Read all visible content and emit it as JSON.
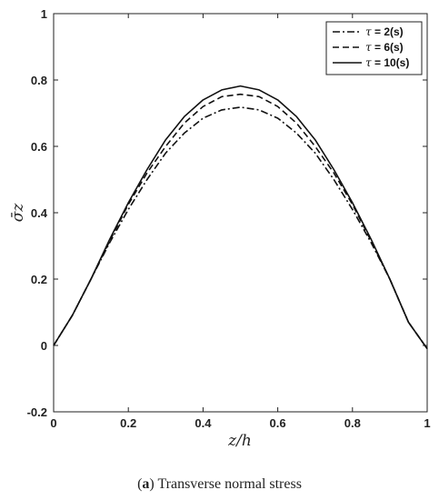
{
  "caption": {
    "prefix": "(",
    "letter": "a",
    "suffix": ")",
    "text": "Transverse normal stress"
  },
  "chart_data": {
    "type": "line",
    "xlabel": "z/h",
    "ylabel": "σ̄z",
    "xlim": [
      0,
      1
    ],
    "ylim": [
      -0.2,
      1
    ],
    "xticks": [
      "0",
      "0.2",
      "0.4",
      "0.6",
      "0.8",
      "1"
    ],
    "yticks": [
      "-0.2",
      "0",
      "0.2",
      "0.4",
      "0.6",
      "0.8",
      "1"
    ],
    "grid": false,
    "legend_position": "top-right",
    "x": [
      0,
      0.05,
      0.1,
      0.15,
      0.2,
      0.25,
      0.3,
      0.35,
      0.4,
      0.45,
      0.5,
      0.55,
      0.6,
      0.65,
      0.7,
      0.75,
      0.8,
      0.85,
      0.9,
      0.95,
      1.0
    ],
    "series": [
      {
        "name": "τ = 2(s)",
        "tau": "τ",
        "label_rest": " = 2(s)",
        "dash": "8,3,2,3",
        "values": [
          0,
          0.09,
          0.2,
          0.31,
          0.41,
          0.5,
          0.58,
          0.64,
          0.685,
          0.71,
          0.718,
          0.71,
          0.685,
          0.64,
          0.58,
          0.5,
          0.41,
          0.31,
          0.2,
          0.07,
          -0.01
        ]
      },
      {
        "name": "τ = 6(s)",
        "tau": "τ",
        "label_rest": " = 6(s)",
        "dash": "7,4",
        "values": [
          0,
          0.09,
          0.2,
          0.315,
          0.425,
          0.52,
          0.6,
          0.67,
          0.72,
          0.75,
          0.757,
          0.75,
          0.72,
          0.67,
          0.6,
          0.52,
          0.425,
          0.315,
          0.2,
          0.07,
          -0.01
        ]
      },
      {
        "name": "τ = 10(s)",
        "tau": "τ",
        "label_rest": " = 10(s)",
        "dash": "",
        "values": [
          0,
          0.09,
          0.2,
          0.32,
          0.43,
          0.53,
          0.62,
          0.69,
          0.74,
          0.77,
          0.782,
          0.77,
          0.74,
          0.69,
          0.62,
          0.53,
          0.43,
          0.32,
          0.2,
          0.07,
          -0.01
        ]
      }
    ]
  }
}
